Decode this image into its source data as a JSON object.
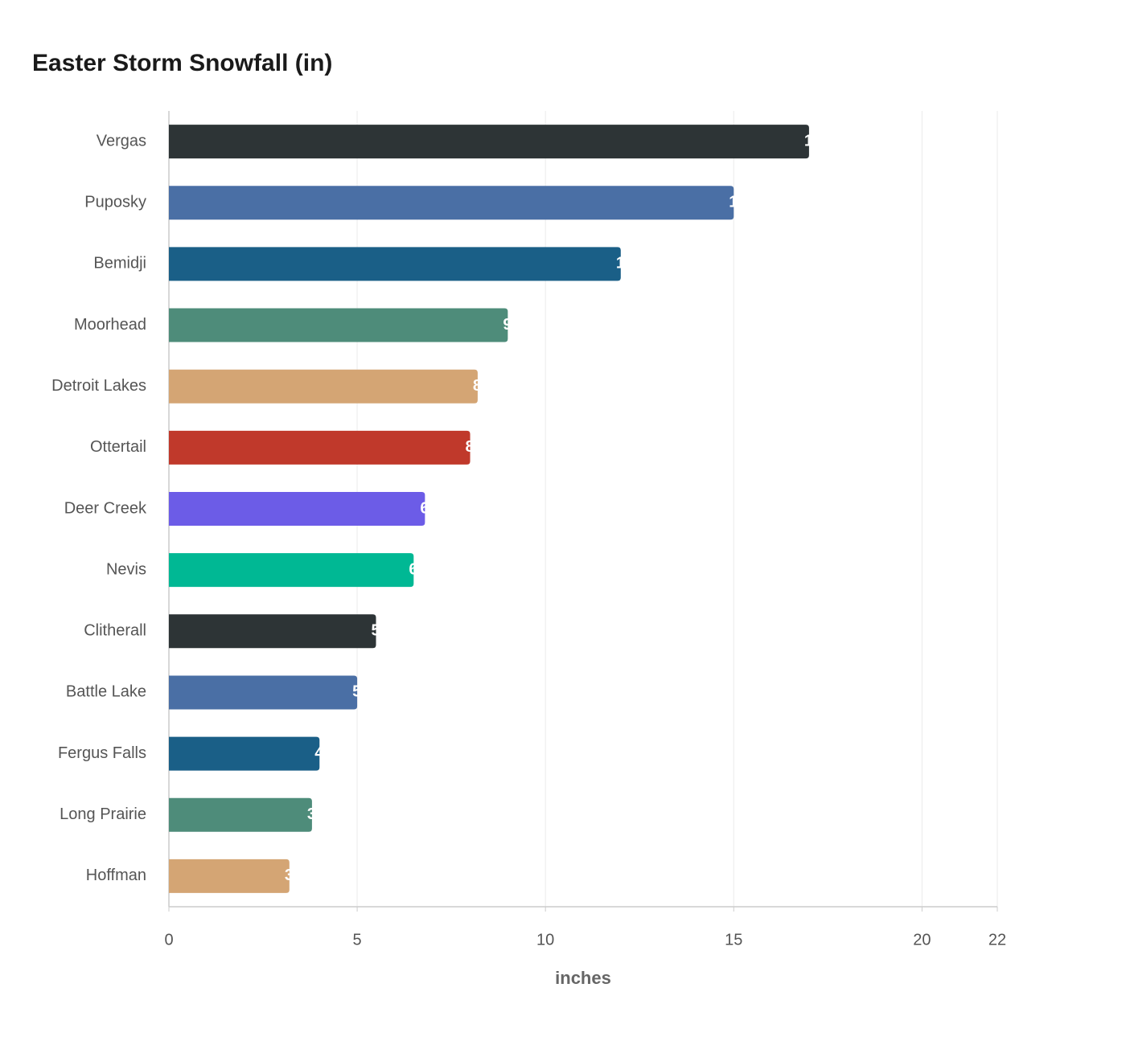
{
  "chart_data": {
    "type": "bar",
    "orientation": "horizontal",
    "title": "Easter Storm Snowfall (in)",
    "x_label": "inches",
    "categories": [
      "Vergas",
      "Puposky",
      "Bemidji",
      "Moorhead",
      "Detroit Lakes",
      "Ottertail",
      "Deer Creek",
      "Nevis",
      "Clitherall",
      "Battle Lake",
      "Fergus Falls",
      "Long Prairie",
      "Hoffman"
    ],
    "values": [
      17,
      15,
      12,
      9,
      8.2,
      8,
      6.8,
      6.5,
      5.5,
      5,
      4,
      3.8,
      3.2
    ],
    "colors": [
      "#2d3436",
      "#4a6fa5",
      "#1a5f87",
      "#4e8c7a",
      "#d4a574",
      "#c0392b",
      "#6c5ce7",
      "#00b894",
      "#2d3436",
      "#4a6fa5",
      "#1a5f87",
      "#4e8c7a",
      "#d4a574"
    ],
    "xlim": [
      0,
      22
    ],
    "xticks": [
      0,
      5,
      10,
      15,
      20,
      22
    ],
    "grid": true
  }
}
